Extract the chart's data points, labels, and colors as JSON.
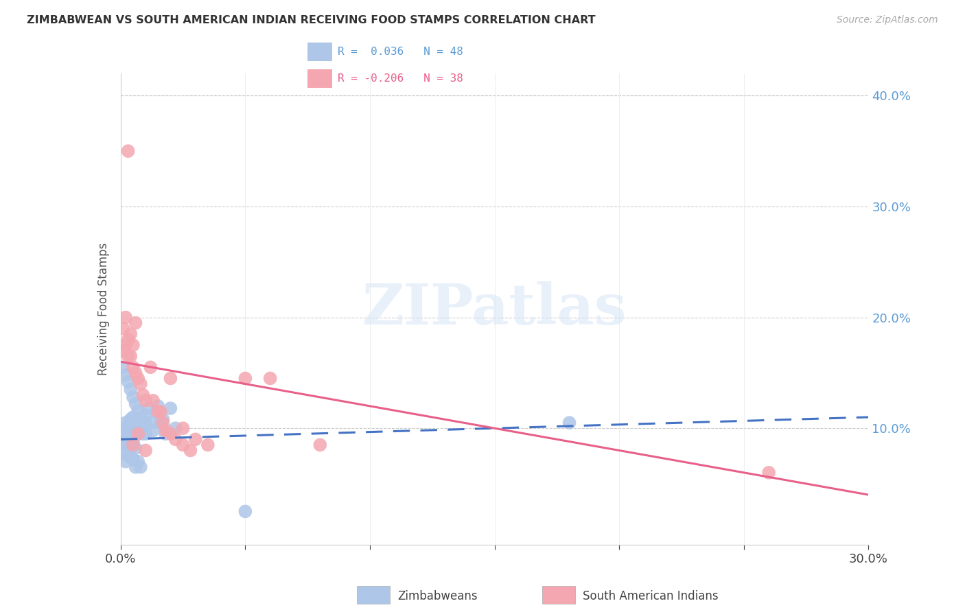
{
  "title": "ZIMBABWEAN VS SOUTH AMERICAN INDIAN RECEIVING FOOD STAMPS CORRELATION CHART",
  "source": "Source: ZipAtlas.com",
  "ylabel": "Receiving Food Stamps",
  "xlim": [
    0.0,
    0.3
  ],
  "ylim": [
    -0.005,
    0.42
  ],
  "blue_color": "#aec6e8",
  "pink_color": "#f4a7b0",
  "blue_line_color": "#4472c4",
  "pink_line_color": "#e8608a",
  "blue_r": "0.036",
  "blue_n": "48",
  "pink_r": "-0.206",
  "pink_n": "38",
  "zim_x": [
    0.001,
    0.001,
    0.001,
    0.001,
    0.002,
    0.002,
    0.002,
    0.002,
    0.003,
    0.003,
    0.003,
    0.004,
    0.004,
    0.004,
    0.005,
    0.005,
    0.005,
    0.006,
    0.006,
    0.006,
    0.007,
    0.007,
    0.008,
    0.008,
    0.009,
    0.01,
    0.01,
    0.011,
    0.012,
    0.013,
    0.014,
    0.015,
    0.016,
    0.017,
    0.018,
    0.02,
    0.022,
    0.001,
    0.002,
    0.003,
    0.004,
    0.005,
    0.006,
    0.007,
    0.008,
    0.01,
    0.18,
    0.05
  ],
  "zim_y": [
    0.1,
    0.095,
    0.088,
    0.078,
    0.105,
    0.098,
    0.085,
    0.07,
    0.102,
    0.092,
    0.075,
    0.108,
    0.095,
    0.082,
    0.11,
    0.088,
    0.072,
    0.1,
    0.082,
    0.065,
    0.095,
    0.07,
    0.1,
    0.065,
    0.095,
    0.112,
    0.095,
    0.118,
    0.105,
    0.098,
    0.115,
    0.12,
    0.105,
    0.108,
    0.095,
    0.118,
    0.1,
    0.155,
    0.148,
    0.142,
    0.135,
    0.128,
    0.122,
    0.116,
    0.11,
    0.105,
    0.105,
    0.025
  ],
  "sa_x": [
    0.001,
    0.001,
    0.002,
    0.002,
    0.003,
    0.003,
    0.004,
    0.004,
    0.005,
    0.005,
    0.006,
    0.006,
    0.007,
    0.008,
    0.009,
    0.01,
    0.012,
    0.013,
    0.015,
    0.016,
    0.017,
    0.018,
    0.02,
    0.022,
    0.025,
    0.028,
    0.02,
    0.025,
    0.03,
    0.035,
    0.05,
    0.06,
    0.08,
    0.26,
    0.003,
    0.005,
    0.007,
    0.01
  ],
  "sa_y": [
    0.19,
    0.17,
    0.2,
    0.175,
    0.165,
    0.18,
    0.185,
    0.165,
    0.175,
    0.155,
    0.195,
    0.15,
    0.145,
    0.14,
    0.13,
    0.125,
    0.155,
    0.125,
    0.115,
    0.115,
    0.105,
    0.098,
    0.095,
    0.09,
    0.085,
    0.08,
    0.145,
    0.1,
    0.09,
    0.085,
    0.145,
    0.145,
    0.085,
    0.06,
    0.35,
    0.085,
    0.095,
    0.08
  ],
  "blue_trend_x0": 0.0,
  "blue_trend_x1": 0.3,
  "blue_trend_y0": 0.09,
  "blue_trend_y1": 0.11,
  "pink_trend_x0": 0.0,
  "pink_trend_x1": 0.3,
  "pink_trend_y0": 0.16,
  "pink_trend_y1": 0.04
}
